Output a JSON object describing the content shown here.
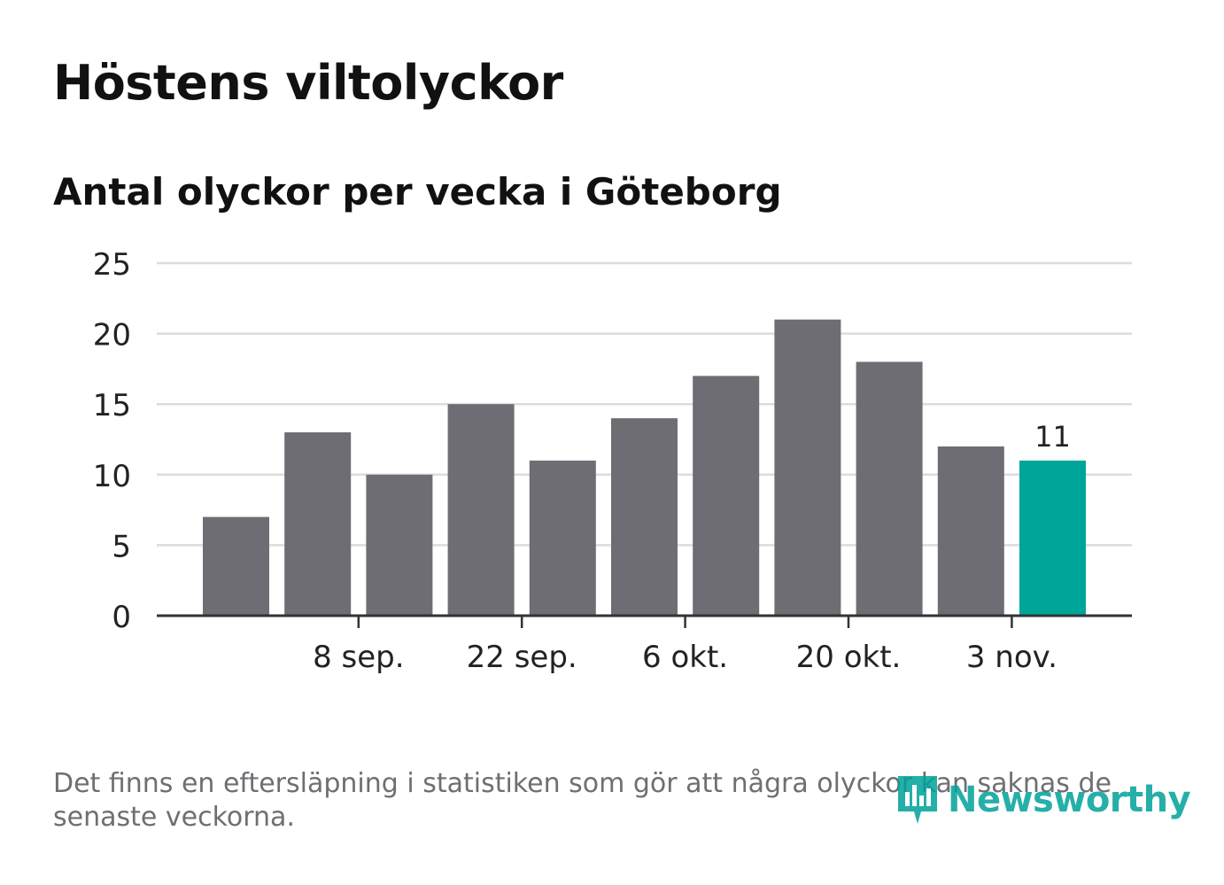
{
  "header": {
    "title": "Höstens viltolyckor",
    "subtitle": "Antal olyckor per vecka i Göteborg"
  },
  "footer": {
    "note": "Det finns en eftersläpning i statistiken som gör att några olyckor kan saknas de senaste veckorna.",
    "brand": "Newsworthy"
  },
  "colors": {
    "bar": "#6e6d73",
    "highlight": "#00a59a",
    "grid": "#dcdcdc",
    "axis": "#333333",
    "text": "#222222"
  },
  "chart_data": {
    "type": "bar",
    "title": "Antal olyckor per vecka i Göteborg",
    "values": [
      7,
      13,
      10,
      15,
      11,
      14,
      17,
      21,
      18,
      12,
      11
    ],
    "highlight_last": true,
    "data_labels": [
      {
        "index": 10,
        "label": "11"
      }
    ],
    "x_tick_labels": [
      {
        "after_bar": 1,
        "label": "8 sep."
      },
      {
        "after_bar": 3,
        "label": "22 sep."
      },
      {
        "after_bar": 5,
        "label": "6 okt."
      },
      {
        "after_bar": 7,
        "label": "20 okt."
      },
      {
        "after_bar": 9,
        "label": "3 nov."
      }
    ],
    "y_ticks": [
      0,
      5,
      10,
      15,
      20,
      25
    ],
    "ylim": [
      0,
      25
    ],
    "grid": true,
    "xlabel": "",
    "ylabel": ""
  }
}
